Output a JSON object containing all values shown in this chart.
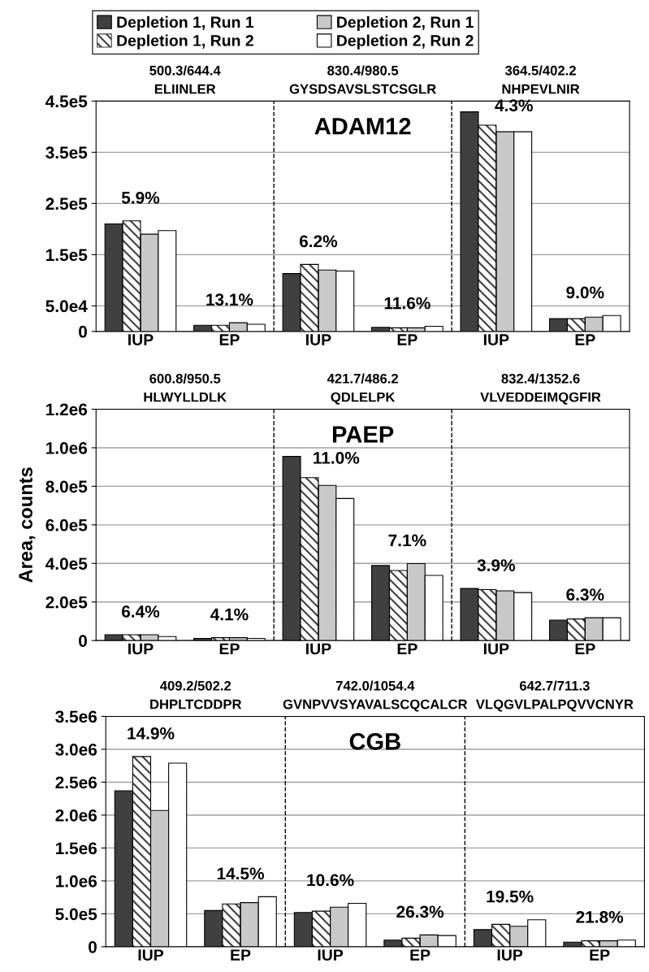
{
  "chart_data": [
    {
      "type": "bar",
      "title": "ADAM12",
      "categories": [
        "IUP",
        "EP",
        "IUP",
        "EP",
        "IUP",
        "EP"
      ],
      "series": [
        {
          "name": "Depletion 1, Run 1",
          "color": "#404040",
          "values": [
            210000,
            12000,
            113000,
            8000,
            429000,
            25000
          ]
        },
        {
          "name": "Depletion 1, Run 2",
          "color": "#404040",
          "values": [
            216000,
            12000,
            131000,
            7000,
            403000,
            25000
          ]
        },
        {
          "name": "Depletion 2, Run 1",
          "color": "#c8c8c8",
          "values": [
            190000,
            17000,
            120000,
            7000,
            390000,
            28000
          ]
        },
        {
          "name": "Depletion 2, Run 2",
          "color": "#ffffff",
          "values": [
            197000,
            14000,
            118000,
            10000,
            390000,
            31000
          ]
        }
      ],
      "ylim": [
        0,
        450000
      ],
      "yticks": [
        0,
        {
          "value": 50000,
          "label": "5.0e4"
        },
        {
          "value": 150000,
          "label": "1.5e5"
        },
        {
          "value": 250000,
          "label": "2.5e5"
        },
        {
          "value": 350000,
          "label": "3.5e5"
        },
        {
          "value": 450000,
          "label": "4.5e5"
        }
      ],
      "grid": "y",
      "legend": "top",
      "annotations": [
        "500.3/644.4\nELIINLER",
        "830.4/980.5\nGYSDSAVSLSTCSGLR",
        "364.5/402.2\nNHPEVLNIR",
        "5.9%",
        "13.1%",
        "6.2%",
        "11.6%",
        "4.3%",
        "9.0%"
      ]
    },
    {
      "type": "bar",
      "title": "PAEP",
      "ylabel": "Area, counts",
      "categories": [
        "IUP",
        "EP",
        "IUP",
        "EP",
        "IUP",
        "EP"
      ],
      "series": [
        {
          "color": "#404040",
          "values": [
            30000,
            11000,
            955000,
            389000,
            270000,
            106000
          ]
        },
        {
          "color": "#404040",
          "values": [
            30000,
            15000,
            845000,
            363000,
            264000,
            112000
          ]
        },
        {
          "color": "#c8c8c8",
          "values": [
            30000,
            15000,
            805000,
            399000,
            258000,
            118000
          ]
        },
        {
          "color": "#ffffff",
          "values": [
            21000,
            11000,
            737000,
            338000,
            249000,
            118000
          ]
        }
      ],
      "ylim": [
        0,
        1200000
      ],
      "yticks": [
        0,
        {
          "value": 200000,
          "label": "2.0e5"
        },
        {
          "value": 400000,
          "label": "4.0e5"
        },
        {
          "value": 600000,
          "label": "6.0e5"
        },
        {
          "value": 800000,
          "label": "8.0e5"
        },
        {
          "value": 1000000,
          "label": "1.0e6"
        },
        {
          "value": 1200000,
          "label": "1.2e6"
        }
      ],
      "grid": "y",
      "annotations": [
        "600.8/950.5\nHLWYLLDLK",
        "421.7/486.2\nQDLELPK",
        "832.4/1352.6\nVLVEDDEIMQGFIR",
        "6.4%",
        "4.1%",
        "11.0%",
        "7.1%",
        "3.9%",
        "6.3%"
      ]
    },
    {
      "type": "bar",
      "title": "CGB",
      "categories": [
        "IUP",
        "EP",
        "IUP",
        "EP",
        "IUP",
        "EP"
      ],
      "series": [
        {
          "color": "#404040",
          "values": [
            2370000,
            550000,
            520000,
            100000,
            260000,
            70000
          ]
        },
        {
          "color": "#404040",
          "values": [
            2890000,
            650000,
            540000,
            130000,
            340000,
            90000
          ]
        },
        {
          "color": "#c8c8c8",
          "values": [
            2070000,
            670000,
            600000,
            180000,
            310000,
            90000
          ]
        },
        {
          "color": "#ffffff",
          "values": [
            2790000,
            760000,
            660000,
            170000,
            410000,
            100000
          ]
        }
      ],
      "ylim": [
        0,
        3500000
      ],
      "yticks": [
        0,
        {
          "value": 500000,
          "label": "5.0e5"
        },
        {
          "value": 1000000,
          "label": "1.0e6"
        },
        {
          "value": 1500000,
          "label": "1.5e6"
        },
        {
          "value": 2000000,
          "label": "2.0e6"
        },
        {
          "value": 2500000,
          "label": "2.5e6"
        },
        {
          "value": 3000000,
          "label": "3.0e6"
        },
        {
          "value": 3500000,
          "label": "3.5e6"
        }
      ],
      "grid": "y",
      "annotations": [
        "409.2/502.2\nDHPLTCDDPR",
        "742.0/1054.4\nGVNPVVSYAVALSCQCALCR",
        "642.7/711.3\nVLQGVLPALPQVVCNYR",
        "14.9%",
        "14.5%",
        "10.6%",
        "26.3%",
        "19.5%",
        "21.8%"
      ]
    }
  ]
}
